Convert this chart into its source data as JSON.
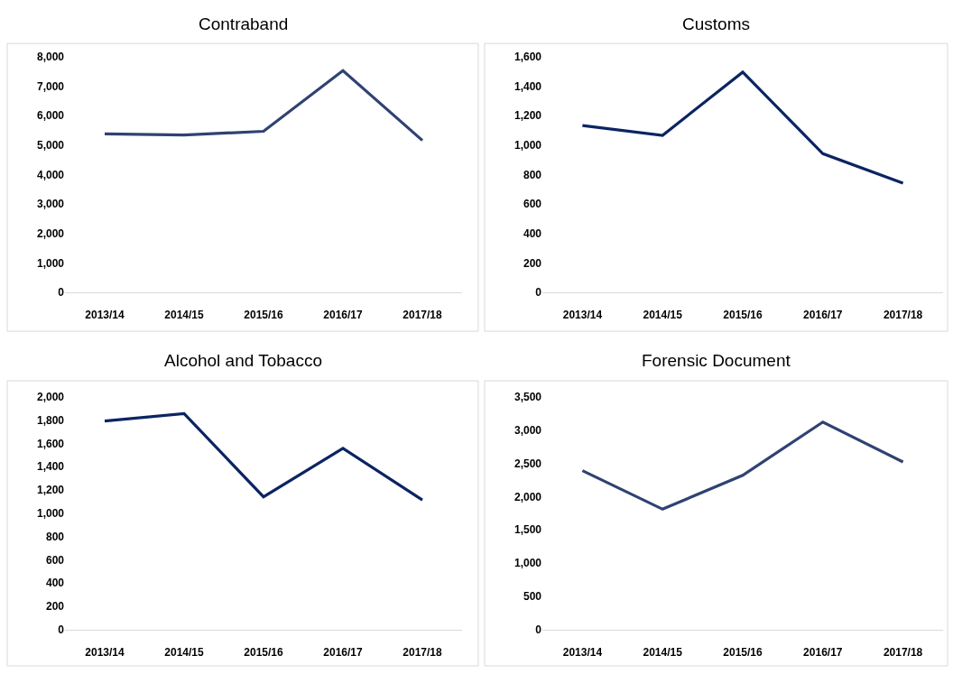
{
  "chart_data": [
    {
      "type": "line",
      "title": "Contraband",
      "categories": [
        "2013/14",
        "2014/15",
        "2015/16",
        "2016/17",
        "2017/18"
      ],
      "values": [
        5380,
        5340,
        5470,
        7530,
        5160
      ],
      "color": "#2f4272",
      "ylim": [
        0,
        8000
      ],
      "yticks": [
        {
          "value": 0,
          "label": "0"
        },
        {
          "value": 1000,
          "label": "1,000"
        },
        {
          "value": 2000,
          "label": "2,000"
        },
        {
          "value": 3000,
          "label": "3,000"
        },
        {
          "value": 4000,
          "label": "4,000"
        },
        {
          "value": 5000,
          "label": "5,000"
        },
        {
          "value": 6000,
          "label": "6,000"
        },
        {
          "value": 7000,
          "label": "7,000"
        },
        {
          "value": 8000,
          "label": "8,000"
        }
      ],
      "grid": false,
      "marker": "none"
    },
    {
      "type": "line",
      "title": "Customs",
      "categories": [
        "2013/14",
        "2014/15",
        "2015/16",
        "2016/17",
        "2017/18"
      ],
      "values": [
        1133,
        1066,
        1496,
        942,
        741
      ],
      "color": "#0b2462",
      "ylim": [
        0,
        1600
      ],
      "yticks": [
        {
          "value": 0,
          "label": "0"
        },
        {
          "value": 200,
          "label": "200"
        },
        {
          "value": 400,
          "label": "400"
        },
        {
          "value": 600,
          "label": "600"
        },
        {
          "value": 800,
          "label": "800"
        },
        {
          "value": 1000,
          "label": "1,000"
        },
        {
          "value": 1200,
          "label": "1,200"
        },
        {
          "value": 1400,
          "label": "1,400"
        },
        {
          "value": 1600,
          "label": "1,600"
        }
      ],
      "grid": false,
      "marker": "none"
    },
    {
      "type": "line",
      "title": "Alcohol and Tobacco",
      "categories": [
        "2013/14",
        "2014/15",
        "2015/16",
        "2016/17",
        "2017/18"
      ],
      "values": [
        1791,
        1856,
        1140,
        1557,
        1114
      ],
      "color": "#0b2462",
      "ylim": [
        0,
        2000
      ],
      "yticks": [
        {
          "value": 0,
          "label": "0"
        },
        {
          "value": 200,
          "label": "200"
        },
        {
          "value": 400,
          "label": "400"
        },
        {
          "value": 600,
          "label": "600"
        },
        {
          "value": 800,
          "label": "800"
        },
        {
          "value": 1000,
          "label": "1,000"
        },
        {
          "value": 1200,
          "label": "1,200"
        },
        {
          "value": 1400,
          "label": "1,400"
        },
        {
          "value": 1600,
          "label": "1,600"
        },
        {
          "value": 1800,
          "label": "1,800"
        },
        {
          "value": 2000,
          "label": "2,000"
        }
      ],
      "grid": false,
      "marker": "none"
    },
    {
      "type": "line",
      "title": "Forensic Document",
      "categories": [
        "2013/14",
        "2014/15",
        "2015/16",
        "2016/17",
        "2017/18"
      ],
      "values": [
        2390,
        1810,
        2320,
        3120,
        2520
      ],
      "color": "#2f4272",
      "ylim": [
        0,
        3500
      ],
      "yticks": [
        {
          "value": 0,
          "label": "0"
        },
        {
          "value": 500,
          "label": "500"
        },
        {
          "value": 1000,
          "label": "1,000"
        },
        {
          "value": 1500,
          "label": "1,500"
        },
        {
          "value": 2000,
          "label": "2,000"
        },
        {
          "value": 2500,
          "label": "2,500"
        },
        {
          "value": 3000,
          "label": "3,000"
        },
        {
          "value": 3500,
          "label": "3,500"
        }
      ],
      "grid": false,
      "marker": "none"
    }
  ]
}
